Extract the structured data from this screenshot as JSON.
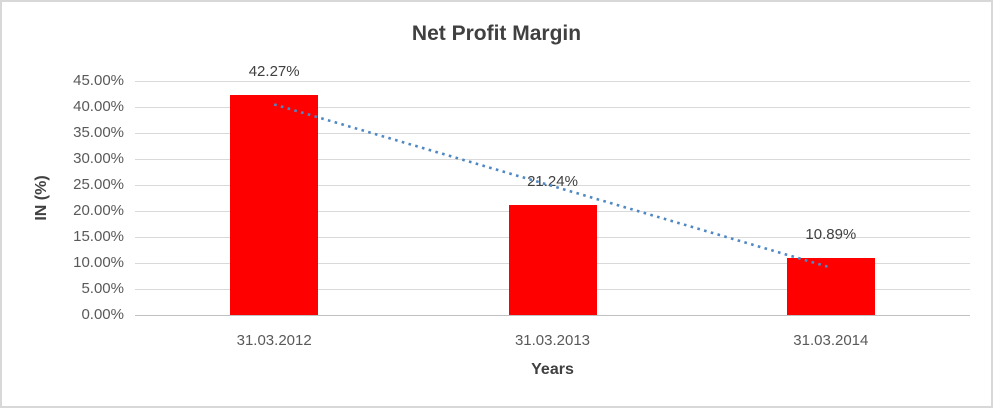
{
  "chart_data": {
    "type": "bar",
    "title": "Net Profit Margin",
    "xlabel": "Years",
    "ylabel": "IN (%)",
    "categories": [
      "31.03.2012",
      "31.03.2013",
      "31.03.2014"
    ],
    "values": [
      42.27,
      21.24,
      10.89
    ],
    "data_labels": [
      "42.27%",
      "21.24%",
      "10.89%"
    ],
    "ylim": [
      0,
      45
    ],
    "ytick_step": 5,
    "ytick_labels": [
      "0.00%",
      "5.00%",
      "10.00%",
      "15.00%",
      "20.00%",
      "25.00%",
      "30.00%",
      "35.00%",
      "40.00%",
      "45.00%"
    ],
    "grid": true,
    "legend": "none",
    "bar_color": "#FF0000",
    "trendline": {
      "style": "dotted",
      "color": "#4E88C4",
      "fitted_values": [
        40.49,
        9.11
      ]
    },
    "colors": {
      "gridline": "#D9D9D9",
      "axis_line": "#C0C0C0",
      "title_text": "#404040",
      "tick_text": "#595959",
      "border": "#D8D8D8"
    }
  }
}
